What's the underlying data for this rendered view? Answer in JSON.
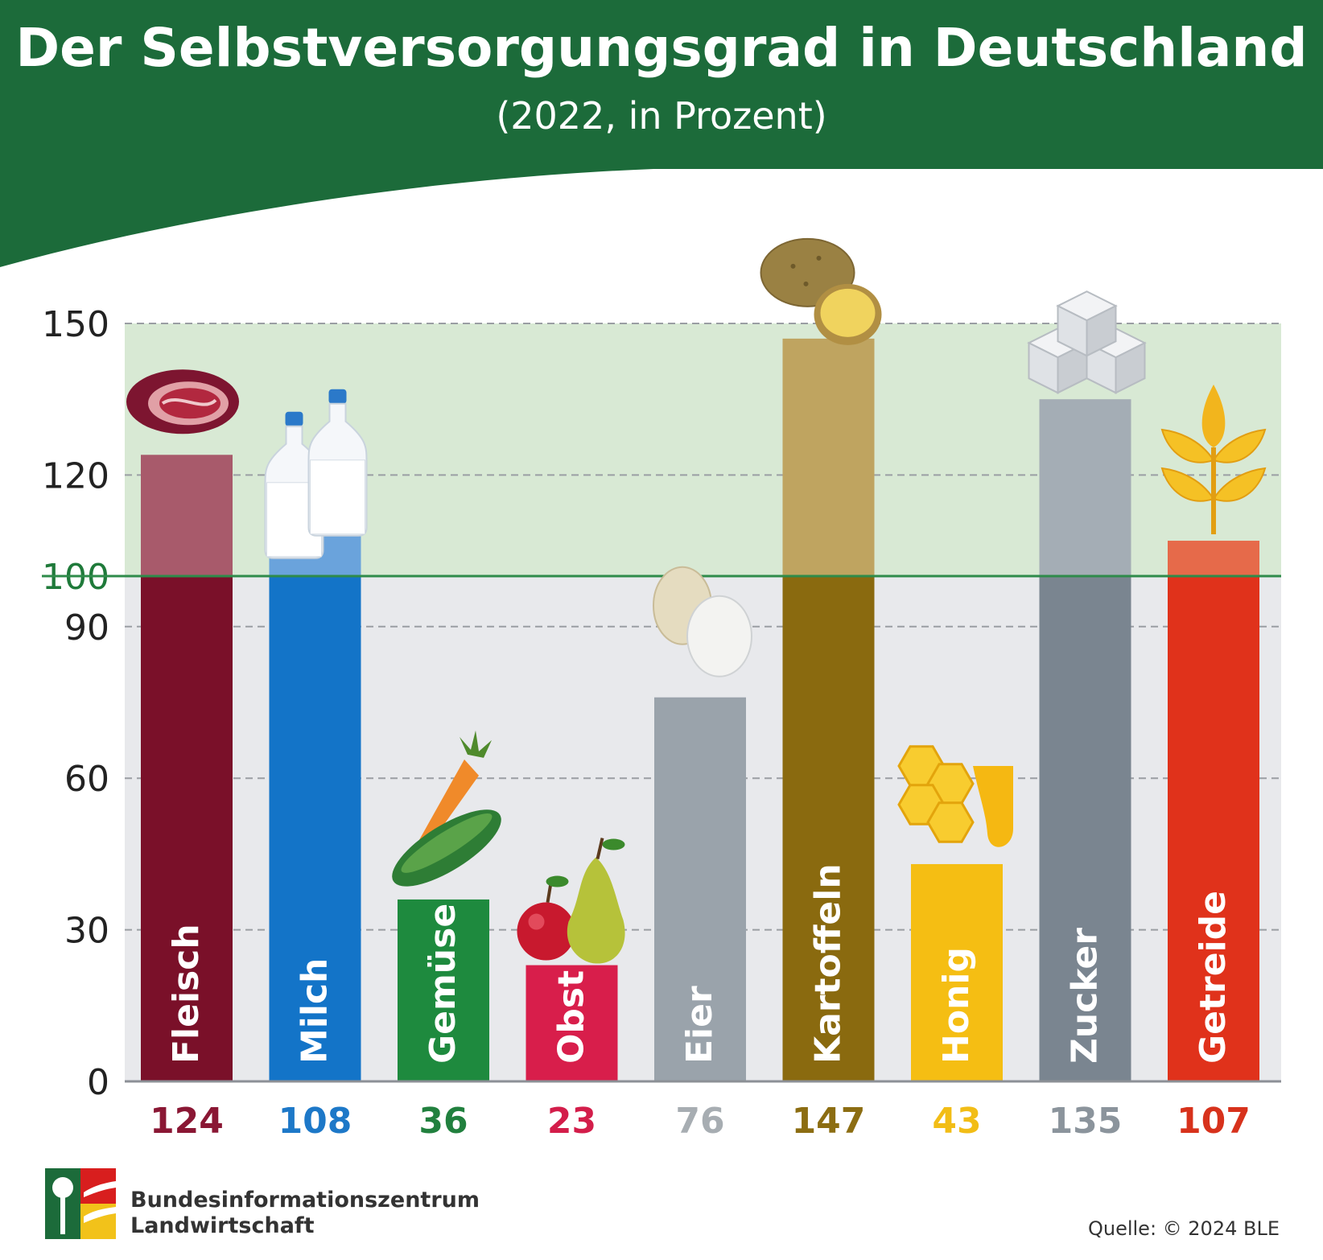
{
  "header": {
    "title": "Der Selbstversorgungsgrad in Deutschland",
    "subtitle": "(2022, in Prozent)"
  },
  "colors": {
    "header_green": "#1c6b3a",
    "self_sufficiency_line": "#2e8b4a",
    "above_100_zone": "#d8e9d4",
    "below_100_zone": "#e8e9ec"
  },
  "chart_data": {
    "type": "bar",
    "title": "Der Selbstversorgungsgrad in Deutschland",
    "subtitle": "(2022, in Prozent)",
    "categories": [
      "Fleisch",
      "Milch",
      "Gemüse",
      "Obst",
      "Eier",
      "Kartoffeln",
      "Honig",
      "Zucker",
      "Getreide"
    ],
    "values": [
      124,
      108,
      36,
      23,
      76,
      147,
      43,
      135,
      107
    ],
    "value_labels": [
      "124",
      "108",
      "36",
      "23",
      "76",
      "147",
      "43",
      "135",
      "107"
    ],
    "colors": [
      "#7a1029",
      "#1374c8",
      "#1e8a3e",
      "#d81e4b",
      "#9aa3ab",
      "#8a6a0f",
      "#f5be13",
      "#7a8590",
      "#e0321b"
    ],
    "light_colors": [
      "#a85a6b",
      "#6aa3dc",
      "#6ab07a",
      "#e47a93",
      "#c1c7cc",
      "#bfa460",
      "#f8d66a",
      "#a4adb5",
      "#e66a4a"
    ],
    "label_colors": [
      "#8a1734",
      "#1d78c8",
      "#21803e",
      "#d31d4a",
      "#a7adb2",
      "#8c6d12",
      "#f2bd16",
      "#8b949c",
      "#d7321c"
    ],
    "icons": [
      "meat-icon",
      "milk-icon",
      "vegetables-icon",
      "fruit-icon",
      "eggs-icon",
      "potatoes-icon",
      "honey-icon",
      "sugar-icon",
      "grain-icon"
    ],
    "yticks": [
      "0",
      "30",
      "60",
      "90",
      "100",
      "120",
      "150"
    ],
    "ylim": [
      0,
      150
    ],
    "reference_line": 100,
    "grid": true
  },
  "footer": {
    "org_line1": "Bundesinformationszentrum",
    "org_line2": "Landwirtschaft",
    "source": "Quelle: © 2024 BLE"
  }
}
